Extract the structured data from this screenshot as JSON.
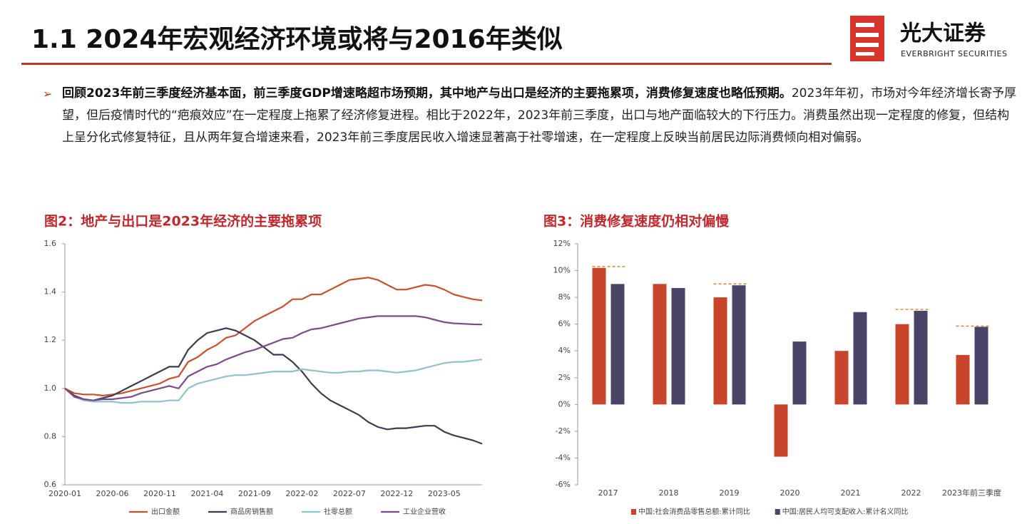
{
  "header": {
    "title": "1.1 2024年宏观经济环境或将与2016年类似",
    "logo_name": "光大证券",
    "logo_subtitle": "EVERBRIGHT SECURITIES"
  },
  "bullet": {
    "bold": "回顾2023年前三季度经济基本面，前三季度GDP增速略超市场预期，其中地产与出口是经济的主要拖累项，消费修复速度也略低预期。",
    "text": "2023年年初，市场对今年经济增长寄予厚望，但后疫情时代的“疤痕效应”在一定程度上拖累了经济修复进程。相比于2022年，2023年前三季度，出口与地产面临较大的下行压力。消费虽然出现一定程度的修复，但结构上呈分化式修复特征，且从两年复合增速来看，2023年前三季度居民收入增速显著高于社零增速，在一定程度上反映当前居民边际消费倾向相对偏弱。"
  },
  "chart_data": [
    {
      "type": "line",
      "title": "图2：地产与出口是2023年经济的主要拖累项",
      "categories": [
        "2020-01",
        null,
        null,
        null,
        null,
        "2020-06",
        null,
        null,
        null,
        null,
        "2020-11",
        null,
        null,
        null,
        null,
        "2021-04",
        null,
        null,
        null,
        null,
        "2021-09",
        null,
        null,
        null,
        null,
        "2022-02",
        null,
        null,
        null,
        null,
        "2022-07",
        null,
        null,
        null,
        null,
        "2022-12",
        null,
        null,
        null,
        null,
        "2023-05",
        null,
        null,
        null,
        null
      ],
      "ylim": [
        0.6,
        1.6
      ],
      "yticks": [
        0.6,
        0.8,
        {
          "value": 1,
          "label": "1.0"
        },
        1.2,
        1.4,
        1.6
      ],
      "grid": false,
      "series": [
        {
          "name": "出口金额",
          "color": "#c9502e",
          "values": [
            1.0,
            0.98,
            0.975,
            0.975,
            0.97,
            0.975,
            0.98,
            0.99,
            1.0,
            1.01,
            1.02,
            1.04,
            1.05,
            1.11,
            1.13,
            1.16,
            1.18,
            1.21,
            1.22,
            1.25,
            1.28,
            1.3,
            1.32,
            1.34,
            1.37,
            1.37,
            1.39,
            1.39,
            1.41,
            1.43,
            1.45,
            1.455,
            1.46,
            1.45,
            1.43,
            1.41,
            1.41,
            1.42,
            1.43,
            1.425,
            1.41,
            1.39,
            1.38,
            1.37,
            1.365
          ]
        },
        {
          "name": "商品房销售额",
          "color": "#3d3a52",
          "values": [
            1.0,
            0.97,
            0.955,
            0.95,
            0.96,
            0.97,
            0.99,
            1.01,
            1.03,
            1.05,
            1.07,
            1.09,
            1.09,
            1.16,
            1.2,
            1.23,
            1.24,
            1.25,
            1.24,
            1.22,
            1.2,
            1.17,
            1.14,
            1.14,
            1.11,
            1.07,
            1.02,
            0.98,
            0.95,
            0.93,
            0.91,
            0.89,
            0.86,
            0.84,
            0.83,
            0.835,
            0.835,
            0.84,
            0.845,
            0.845,
            0.82,
            0.805,
            0.795,
            0.785,
            0.77
          ]
        },
        {
          "name": "社零总额",
          "color": "#8fc3c8",
          "values": [
            1.0,
            0.965,
            0.95,
            0.945,
            0.945,
            0.945,
            0.94,
            0.94,
            0.945,
            0.945,
            0.945,
            0.95,
            0.95,
            1.0,
            1.02,
            1.03,
            1.04,
            1.05,
            1.055,
            1.055,
            1.06,
            1.065,
            1.07,
            1.07,
            1.07,
            1.08,
            1.075,
            1.07,
            1.065,
            1.065,
            1.07,
            1.07,
            1.075,
            1.075,
            1.07,
            1.065,
            1.07,
            1.075,
            1.085,
            1.095,
            1.105,
            1.11,
            1.11,
            1.115,
            1.12
          ]
        },
        {
          "name": "工业企业营收",
          "color": "#7b4a8a",
          "values": [
            1.0,
            0.965,
            0.955,
            0.95,
            0.955,
            0.955,
            0.96,
            0.965,
            0.98,
            0.99,
            1.0,
            1.01,
            1.0,
            1.05,
            1.07,
            1.09,
            1.1,
            1.12,
            1.135,
            1.15,
            1.16,
            1.175,
            1.19,
            1.205,
            1.21,
            1.23,
            1.245,
            1.25,
            1.26,
            1.27,
            1.28,
            1.29,
            1.295,
            1.3,
            1.3,
            1.3,
            1.3,
            1.3,
            1.295,
            1.285,
            1.275,
            1.27,
            1.268,
            1.266,
            1.265
          ]
        }
      ]
    },
    {
      "type": "bar",
      "title": "图3：消费修复速度仍相对偏慢",
      "categories": [
        "2017",
        "2018",
        "2019",
        "2020",
        "2021",
        "2022",
        "2023年前三季度"
      ],
      "ylim": [
        -6,
        12
      ],
      "yticks": [
        {
          "value": -6,
          "label": "-6%"
        },
        {
          "value": -4,
          "label": "-4%"
        },
        {
          "value": -2,
          "label": "-2%"
        },
        {
          "value": 0,
          "label": "0%"
        },
        {
          "value": 2,
          "label": "2%"
        },
        {
          "value": 4,
          "label": "4%"
        },
        {
          "value": 6,
          "label": "6%"
        },
        {
          "value": 8,
          "label": "8%"
        },
        {
          "value": 10,
          "label": "10%"
        },
        {
          "value": 12,
          "label": "12%"
        }
      ],
      "grid": false,
      "series": [
        {
          "name": "中国:社会消费品零售总额:累计同比",
          "color": "#c8442a",
          "values": [
            10.2,
            9.0,
            8.0,
            -3.9,
            4.0,
            6.0,
            3.7
          ]
        },
        {
          "name": "中国:居民人均可支配收入:累计名义同比",
          "color": "#4a4466",
          "values": [
            9.0,
            8.7,
            8.9,
            4.7,
            6.9,
            7.0,
            5.8
          ]
        }
      ],
      "reference_lines": {
        "color": "#e08a3c",
        "values": [
          10.3,
          null,
          9.0,
          null,
          null,
          7.1,
          5.85
        ]
      }
    }
  ]
}
